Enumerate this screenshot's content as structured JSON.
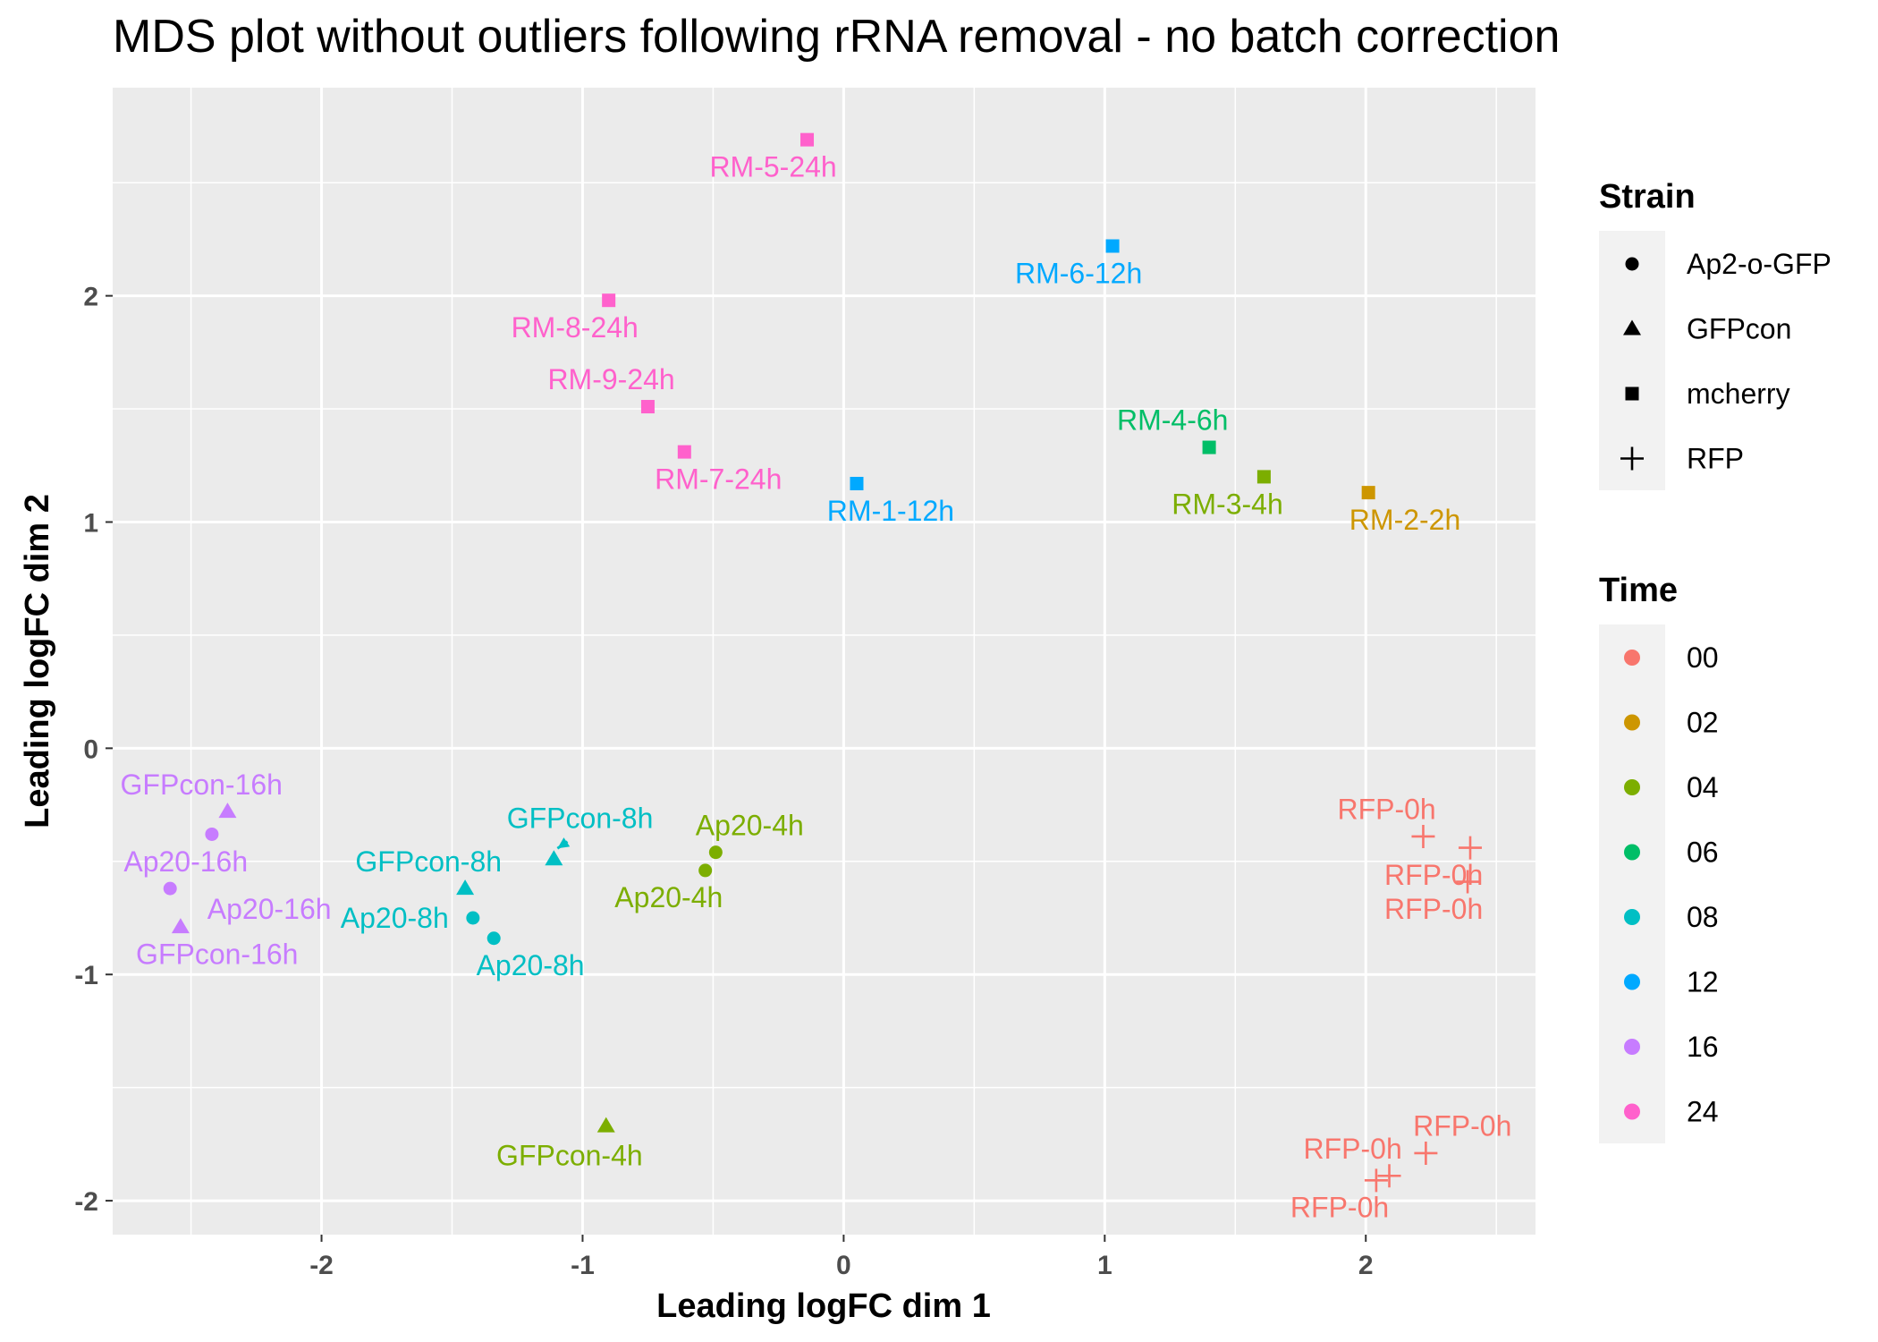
{
  "chart_data": {
    "type": "scatter",
    "title": "MDS plot without outliers following rRNA removal - no batch correction",
    "xlabel": "Leading logFC dim 1",
    "ylabel": "Leading logFC dim 2",
    "xlim": [
      -2.8,
      2.65
    ],
    "ylim": [
      -2.15,
      2.92
    ],
    "x_ticks": [
      -2,
      -1,
      0,
      1,
      2
    ],
    "y_ticks": [
      -2,
      -1,
      0,
      1,
      2
    ],
    "x_tick_labels": [
      "-2",
      "-1",
      "0",
      "1",
      "2"
    ],
    "y_tick_labels": [
      "-2",
      "-1",
      "0",
      "1",
      "2"
    ],
    "grid": true,
    "legend_position": "right",
    "legends": {
      "strain": {
        "title": "Strain",
        "items": [
          {
            "label": "Ap2-o-GFP",
            "shape": "circle"
          },
          {
            "label": "GFPcon",
            "shape": "triangle"
          },
          {
            "label": "mcherry",
            "shape": "square"
          },
          {
            "label": "RFP",
            "shape": "plus"
          }
        ]
      },
      "time": {
        "title": "Time",
        "items": [
          {
            "label": "00",
            "color": "#F8766D"
          },
          {
            "label": "02",
            "color": "#CD9600"
          },
          {
            "label": "04",
            "color": "#7CAE00"
          },
          {
            "label": "06",
            "color": "#00BE67"
          },
          {
            "label": "08",
            "color": "#00BFC4"
          },
          {
            "label": "12",
            "color": "#00A9FF"
          },
          {
            "label": "16",
            "color": "#C77CFF"
          },
          {
            "label": "24",
            "color": "#FF61CC"
          }
        ]
      }
    },
    "points": [
      {
        "label": "RM-5-24h",
        "x": -0.14,
        "y": 2.69,
        "strain": "mcherry",
        "time": "24",
        "lx": -0.27,
        "ly": 2.57
      },
      {
        "label": "RM-6-12h",
        "x": 1.03,
        "y": 2.22,
        "strain": "mcherry",
        "time": "12",
        "lx": 0.9,
        "ly": 2.1
      },
      {
        "label": "RM-8-24h",
        "x": -0.9,
        "y": 1.98,
        "strain": "mcherry",
        "time": "24",
        "lx": -1.03,
        "ly": 1.86
      },
      {
        "label": "RM-9-24h",
        "x": -0.75,
        "y": 1.51,
        "strain": "mcherry",
        "time": "24",
        "lx": -0.89,
        "ly": 1.63
      },
      {
        "label": "RM-4-6h",
        "x": 1.4,
        "y": 1.33,
        "strain": "mcherry",
        "time": "06",
        "lx": 1.26,
        "ly": 1.45
      },
      {
        "label": "RM-7-24h",
        "x": -0.61,
        "y": 1.31,
        "strain": "mcherry",
        "time": "24",
        "lx": -0.48,
        "ly": 1.19
      },
      {
        "label": "RM-3-4h",
        "x": 1.61,
        "y": 1.2,
        "strain": "mcherry",
        "time": "04",
        "lx": 1.47,
        "ly": 1.08
      },
      {
        "label": "RM-1-12h",
        "x": 0.05,
        "y": 1.17,
        "strain": "mcherry",
        "time": "12",
        "lx": 0.18,
        "ly": 1.05
      },
      {
        "label": "RM-2-2h",
        "x": 2.01,
        "y": 1.13,
        "strain": "mcherry",
        "time": "02",
        "lx": 2.15,
        "ly": 1.01
      },
      {
        "label": "GFPcon-16h",
        "x": -2.36,
        "y": -0.28,
        "strain": "GFPcon",
        "time": "16",
        "lx": -2.46,
        "ly": -0.16
      },
      {
        "label": "Ap20-16h",
        "x": -2.42,
        "y": -0.38,
        "strain": "Ap2-o-GFP",
        "time": "16",
        "lx": -2.52,
        "ly": -0.5
      },
      {
        "label": "Ap20-16h",
        "x": -2.58,
        "y": -0.62,
        "strain": "Ap2-o-GFP",
        "time": "16",
        "lx": -2.2,
        "ly": -0.71
      },
      {
        "label": "GFPcon-16h",
        "x": -2.54,
        "y": -0.79,
        "strain": "GFPcon",
        "time": "16",
        "lx": -2.4,
        "ly": -0.91
      },
      {
        "label": "GFPcon-8h",
        "x": -1.11,
        "y": -0.49,
        "strain": "GFPcon",
        "time": "08",
        "lx": -1.01,
        "ly": -0.31,
        "arrow": true
      },
      {
        "label": "GFPcon-8h",
        "x": -1.45,
        "y": -0.62,
        "strain": "GFPcon",
        "time": "08",
        "lx": -1.59,
        "ly": -0.5
      },
      {
        "label": "Ap20-8h",
        "x": -1.42,
        "y": -0.75,
        "strain": "Ap2-o-GFP",
        "time": "08",
        "lx": -1.72,
        "ly": -0.75
      },
      {
        "label": "Ap20-8h",
        "x": -1.34,
        "y": -0.84,
        "strain": "Ap2-o-GFP",
        "time": "08",
        "lx": -1.2,
        "ly": -0.96
      },
      {
        "label": "Ap20-4h",
        "x": -0.49,
        "y": -0.46,
        "strain": "Ap2-o-GFP",
        "time": "04",
        "lx": -0.36,
        "ly": -0.34
      },
      {
        "label": "Ap20-4h",
        "x": -0.53,
        "y": -0.54,
        "strain": "Ap2-o-GFP",
        "time": "04",
        "lx": -0.67,
        "ly": -0.66
      },
      {
        "label": "GFPcon-4h",
        "x": -0.91,
        "y": -1.67,
        "strain": "GFPcon",
        "time": "04",
        "lx": -1.05,
        "ly": -1.8
      },
      {
        "label": "RFP-0h",
        "x": 2.22,
        "y": -0.39,
        "strain": "RFP",
        "time": "00",
        "lx": 2.08,
        "ly": -0.27
      },
      {
        "label": "RFP-0h",
        "x": 2.4,
        "y": -0.44,
        "strain": "RFP",
        "time": "00",
        "lx": 2.26,
        "ly": -0.56
      },
      {
        "label": "RFP-0h",
        "x": 2.39,
        "y": -0.59,
        "strain": "RFP",
        "time": "00",
        "lx": 2.26,
        "ly": -0.71
      },
      {
        "label": "RFP-0h",
        "x": 2.23,
        "y": -1.79,
        "strain": "RFP",
        "time": "00",
        "lx": 2.37,
        "ly": -1.67
      },
      {
        "label": "RFP-0h",
        "x": 2.09,
        "y": -1.89,
        "strain": "RFP",
        "time": "00",
        "lx": 1.95,
        "ly": -1.77
      },
      {
        "label": "RFP-0h",
        "x": 2.04,
        "y": -1.91,
        "strain": "RFP",
        "time": "00",
        "lx": 1.9,
        "ly": -2.03
      }
    ]
  }
}
